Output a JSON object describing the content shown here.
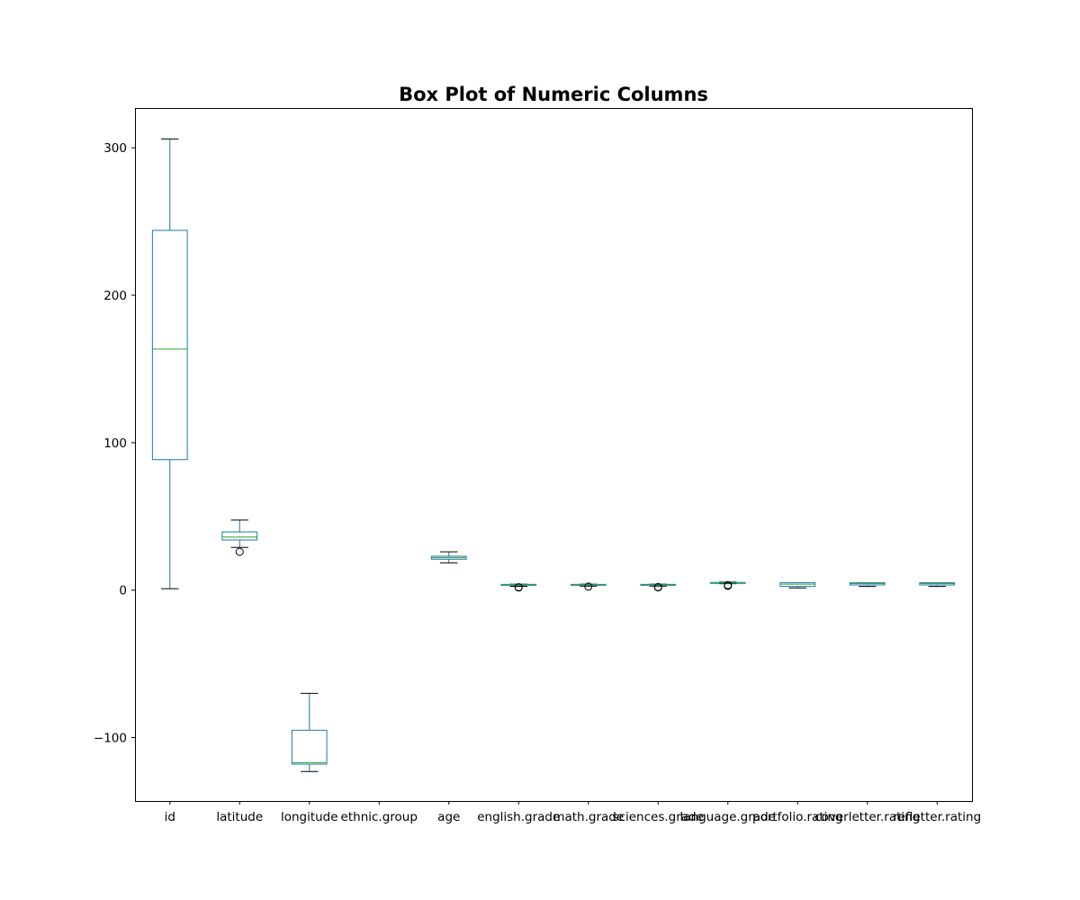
{
  "chart_data": {
    "type": "box",
    "title": "Box Plot of Numeric Columns",
    "xlabel": "",
    "ylabel": "",
    "ylim": [
      -143,
      327
    ],
    "yticks": [
      -100,
      0,
      100,
      200,
      300
    ],
    "ytick_labels": [
      "−100",
      "0",
      "100",
      "200",
      "300"
    ],
    "grid": false,
    "colors": {
      "box": "#1f77b4",
      "median": "#2ca02c",
      "cap": "#000000",
      "flier": "#000000"
    },
    "categories": [
      "id",
      "latitude",
      "longitude",
      "ethnic.group",
      "age",
      "english.grade",
      "math.grade",
      "sciences.grade",
      "language.grade",
      "portfolio.rating",
      "coverletter.rating",
      "refletter.rating"
    ],
    "boxes": [
      {
        "q1": 88.5,
        "median": 163.5,
        "q3": 244.0,
        "whisker_low": 1.0,
        "whisker_high": 306.0,
        "fliers": []
      },
      {
        "q1": 34.0,
        "median": 36.0,
        "q3": 39.5,
        "whisker_low": 29.0,
        "whisker_high": 47.5,
        "fliers": [
          26.0
        ]
      },
      {
        "q1": -118.0,
        "median": -117.0,
        "q3": -95.0,
        "whisker_low": -123.0,
        "whisker_high": -70.0,
        "fliers": []
      },
      null,
      {
        "q1": 21.0,
        "median": 22.0,
        "q3": 23.0,
        "whisker_low": 18.5,
        "whisker_high": 26.0,
        "fliers": []
      },
      {
        "q1": 3.3,
        "median": 3.6,
        "q3": 3.9,
        "whisker_low": 2.6,
        "whisker_high": 4.0,
        "fliers": [
          2.0,
          1.8
        ]
      },
      {
        "q1": 3.3,
        "median": 3.6,
        "q3": 3.9,
        "whisker_low": 2.7,
        "whisker_high": 4.0,
        "fliers": [
          2.4
        ]
      },
      {
        "q1": 3.3,
        "median": 3.6,
        "q3": 3.9,
        "whisker_low": 2.7,
        "whisker_high": 4.0,
        "fliers": [
          2.1,
          1.9
        ]
      },
      {
        "q1": 4.8,
        "median": 5.0,
        "q3": 5.2,
        "whisker_low": 4.3,
        "whisker_high": 5.5,
        "fliers": [
          3.4,
          2.9
        ]
      },
      {
        "q1": 2.5,
        "median": 4.0,
        "q3": 5.0,
        "whisker_low": 1.5,
        "whisker_high": 5.0,
        "fliers": []
      },
      {
        "q1": 3.5,
        "median": 4.5,
        "q3": 5.0,
        "whisker_low": 2.5,
        "whisker_high": 5.0,
        "fliers": []
      },
      {
        "q1": 3.5,
        "median": 4.5,
        "q3": 5.0,
        "whisker_low": 2.5,
        "whisker_high": 5.0,
        "fliers": []
      }
    ]
  }
}
